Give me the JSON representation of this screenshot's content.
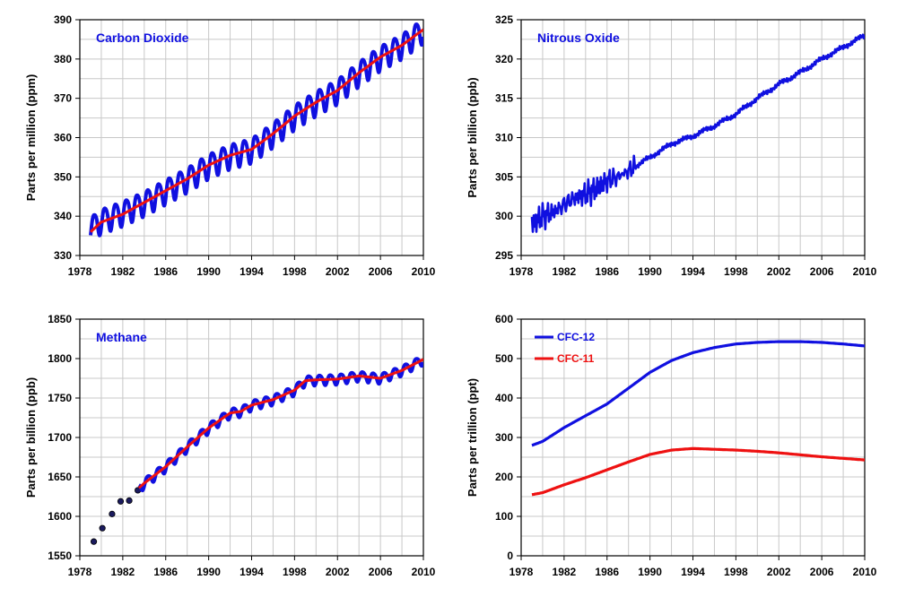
{
  "colors": {
    "blue": "#1010e0",
    "red": "#ee1111",
    "grid": "#c8c8c8",
    "marker": "#1a1a5e"
  },
  "x_ticks": [
    "1978",
    "1982",
    "1986",
    "1990",
    "1994",
    "1998",
    "2002",
    "2006",
    "2010"
  ],
  "chart_data": [
    {
      "type": "line",
      "title": "Carbon Dioxide",
      "ylabel": "Parts per million (ppm)",
      "xlim": [
        1978,
        2010
      ],
      "ylim": [
        330,
        390
      ],
      "y_ticks": [
        "330",
        "340",
        "350",
        "360",
        "370",
        "380",
        "390"
      ],
      "grid": true,
      "series": [
        {
          "color": "#1010e0",
          "style": "seasonal monthly",
          "x": [
            1979,
            1980,
            1982,
            1984,
            1986,
            1988,
            1990,
            1992,
            1994,
            1996,
            1998,
            2000,
            2002,
            2004,
            2006,
            2008,
            2010
          ],
          "y": [
            337,
            339,
            341,
            343.5,
            346.5,
            349.5,
            353,
            355.5,
            357,
            361,
            365.5,
            369,
            372,
            376.5,
            380.5,
            383.5,
            387.5
          ],
          "amplitude": 3.5
        },
        {
          "color": "#ee1111",
          "style": "trend",
          "x": [
            1979,
            1980,
            1982,
            1984,
            1986,
            1988,
            1990,
            1992,
            1994,
            1996,
            1998,
            2000,
            2002,
            2004,
            2006,
            2008,
            2010
          ],
          "y": [
            336,
            338.5,
            340.5,
            343.5,
            346.5,
            349.5,
            353,
            355.5,
            357,
            361,
            365.5,
            369,
            372,
            376.5,
            380.5,
            383.5,
            387.5
          ]
        }
      ]
    },
    {
      "type": "line",
      "title": "Nitrous Oxide",
      "ylabel": "Parts per billion (ppb)",
      "xlim": [
        1978,
        2010
      ],
      "ylim": [
        295,
        325
      ],
      "y_ticks": [
        "295",
        "300",
        "305",
        "310",
        "315",
        "320",
        "325"
      ],
      "grid": true,
      "series": [
        {
          "color": "#1010e0",
          "style": "noisy",
          "x": [
            1979,
            1980,
            1981,
            1982,
            1983,
            1984,
            1985,
            1986,
            1987,
            1988,
            1990,
            1992,
            1994,
            1996,
            1998,
            2000,
            2002,
            2004,
            2006,
            2008,
            2010
          ],
          "y": [
            299,
            300,
            300.5,
            301.5,
            302.3,
            302.8,
            303.5,
            304.5,
            305,
            305.8,
            307.5,
            309.2,
            310.2,
            311.5,
            313,
            315,
            316.8,
            318.3,
            320,
            321.5,
            323
          ]
        }
      ]
    },
    {
      "type": "line",
      "title": "Methane",
      "ylabel": "Parts per billion (ppb)",
      "xlim": [
        1978,
        2010
      ],
      "ylim": [
        1550,
        1850
      ],
      "y_ticks": [
        "1550",
        "1600",
        "1650",
        "1700",
        "1750",
        "1800",
        "1850"
      ],
      "grid": true,
      "series": [
        {
          "color": "#1a1a5e",
          "style": "points",
          "x": [
            1979.3,
            1980.1,
            1981.0,
            1981.8,
            1982.6,
            1983.4
          ],
          "y": [
            1568,
            1585,
            1603,
            1619,
            1620,
            1633
          ]
        },
        {
          "color": "#1010e0",
          "style": "seasonal monthly",
          "x": [
            1983.5,
            1984,
            1986,
            1988,
            1990,
            1992,
            1993,
            1994,
            1996,
            1998,
            1999,
            2000,
            2002,
            2004,
            2006,
            2008,
            2010
          ],
          "y": [
            1636,
            1642,
            1663,
            1688,
            1712,
            1731,
            1733,
            1741,
            1748,
            1760,
            1772,
            1773,
            1774,
            1778,
            1775,
            1785,
            1799
          ],
          "amplitude": 7
        },
        {
          "color": "#ee1111",
          "style": "trend",
          "x": [
            1983.5,
            1984,
            1986,
            1988,
            1990,
            1992,
            1993,
            1994,
            1996,
            1998,
            1999,
            2000,
            2002,
            2004,
            2006,
            2008,
            2010
          ],
          "y": [
            1636,
            1642,
            1663,
            1688,
            1712,
            1731,
            1733,
            1741,
            1748,
            1760,
            1772,
            1773,
            1774,
            1778,
            1775,
            1785,
            1799
          ]
        }
      ]
    },
    {
      "type": "line",
      "title": "",
      "ylabel": "Parts per trillion (ppt)",
      "xlim": [
        1978,
        2010
      ],
      "ylim": [
        0,
        600
      ],
      "y_ticks": [
        "0",
        "100",
        "200",
        "300",
        "400",
        "500",
        "600"
      ],
      "grid": true,
      "legend": "top-left",
      "series": [
        {
          "name": "CFC-12",
          "color": "#1010e0",
          "style": "smooth",
          "x": [
            1979,
            1980,
            1982,
            1984,
            1986,
            1988,
            1990,
            1992,
            1994,
            1996,
            1998,
            2000,
            2002,
            2004,
            2006,
            2008,
            2010
          ],
          "y": [
            280,
            290,
            325,
            355,
            385,
            425,
            465,
            495,
            515,
            528,
            537,
            541,
            543,
            543,
            541,
            537,
            532
          ]
        },
        {
          "name": "CFC-11",
          "color": "#ee1111",
          "style": "smooth",
          "x": [
            1979,
            1980,
            1982,
            1984,
            1986,
            1988,
            1990,
            1992,
            1994,
            1996,
            1998,
            2000,
            2002,
            2004,
            2006,
            2008,
            2010
          ],
          "y": [
            155,
            160,
            180,
            198,
            218,
            238,
            257,
            268,
            272,
            270,
            268,
            265,
            261,
            256,
            251,
            247,
            243
          ]
        }
      ]
    }
  ]
}
